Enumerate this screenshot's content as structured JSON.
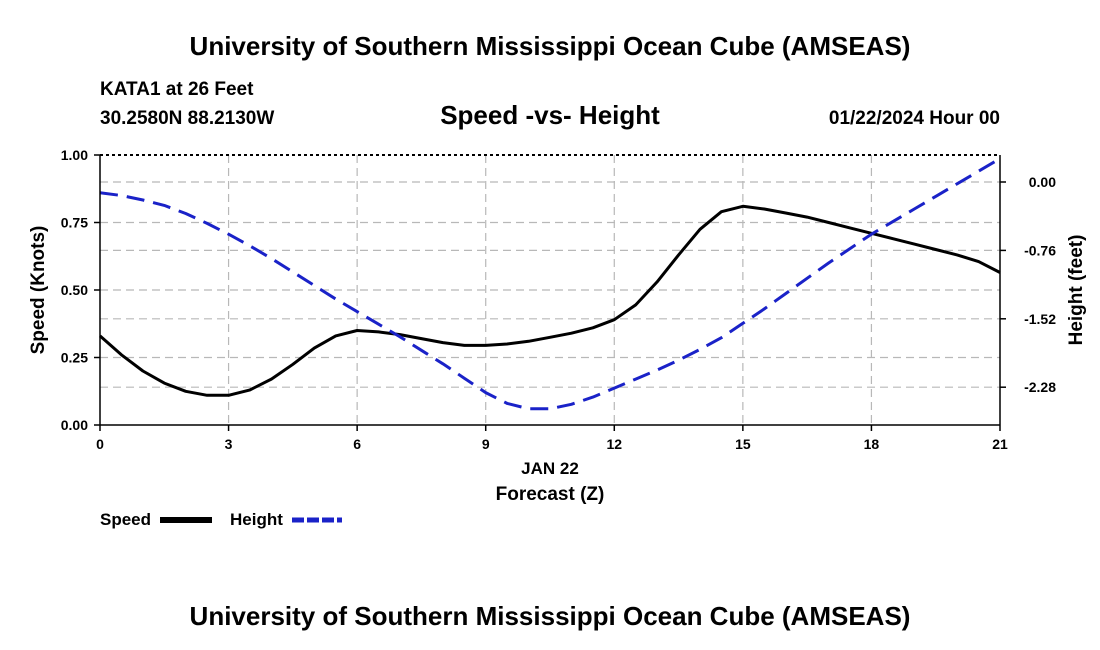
{
  "header": {
    "title": "University of Southern Mississippi Ocean Cube (AMSEAS)",
    "station_line": "KATA1 at 26 Feet",
    "coords_line": "30.2580N  88.2130W",
    "date_line": "01/22/2024 Hour 00"
  },
  "footer": {
    "title": "University of Southern Mississippi Ocean Cube (AMSEAS)"
  },
  "colors": {
    "speed": "#000000",
    "height": "#1a22c8",
    "grid": "#b8b8b8"
  },
  "chart_data": {
    "type": "line",
    "title": "Speed -vs- Height",
    "xlabel": "Forecast (Z)",
    "xdate_label": "JAN 22",
    "ylabel": "Speed (Knots)",
    "y2label": "Height (feet)",
    "xlim": [
      0,
      21
    ],
    "ylim": [
      0,
      1
    ],
    "y2lim": [
      -2.7,
      0.3
    ],
    "x_ticks": [
      "0",
      "3",
      "6",
      "9",
      "12",
      "15",
      "18",
      "21"
    ],
    "x_tick_values": [
      0,
      3,
      6,
      9,
      12,
      15,
      18,
      21
    ],
    "y_ticks": [
      "0.00",
      "0.25",
      "0.50",
      "0.75",
      "1.00"
    ],
    "y_tick_values": [
      0,
      0.25,
      0.5,
      0.75,
      1.0
    ],
    "y2_ticks": [
      "-2.28",
      "-1.52",
      "-0.76",
      "0.00"
    ],
    "y2_tick_values": [
      -2.28,
      -1.52,
      -0.76,
      0.0
    ],
    "legend": [
      {
        "label": "Speed",
        "style": "solid"
      },
      {
        "label": "Height",
        "style": "dashed"
      }
    ],
    "series": [
      {
        "name": "Speed",
        "axis": "left",
        "x": [
          0,
          0.5,
          1,
          1.5,
          2,
          2.5,
          3,
          3.5,
          4,
          4.5,
          5,
          5.5,
          6,
          6.5,
          7,
          7.5,
          8,
          8.5,
          9,
          9.5,
          10,
          10.5,
          11,
          11.5,
          12,
          12.5,
          13,
          13.5,
          14,
          14.5,
          15,
          15.5,
          16,
          16.5,
          17,
          17.5,
          18,
          18.5,
          19,
          19.5,
          20,
          20.5,
          21
        ],
        "values": [
          0.33,
          0.26,
          0.2,
          0.155,
          0.125,
          0.11,
          0.11,
          0.13,
          0.17,
          0.225,
          0.285,
          0.33,
          0.35,
          0.345,
          0.335,
          0.32,
          0.305,
          0.295,
          0.295,
          0.3,
          0.31,
          0.325,
          0.34,
          0.36,
          0.39,
          0.445,
          0.53,
          0.63,
          0.725,
          0.79,
          0.81,
          0.8,
          0.785,
          0.77,
          0.75,
          0.73,
          0.71,
          0.69,
          0.67,
          0.65,
          0.63,
          0.605,
          0.565
        ]
      },
      {
        "name": "Height",
        "axis": "right",
        "x": [
          0,
          0.5,
          1,
          1.5,
          2,
          2.5,
          3,
          3.5,
          4,
          4.5,
          5,
          5.5,
          6,
          6.5,
          7,
          7.5,
          8,
          8.5,
          9,
          9.5,
          10,
          10.5,
          11,
          11.5,
          12,
          12.5,
          13,
          13.5,
          14,
          14.5,
          15,
          15.5,
          16,
          16.5,
          17,
          17.5,
          18,
          18.5,
          19,
          19.5,
          20,
          20.5,
          21
        ],
        "values": [
          -0.12,
          -0.15,
          -0.2,
          -0.26,
          -0.35,
          -0.46,
          -0.58,
          -0.71,
          -0.85,
          -1.0,
          -1.15,
          -1.3,
          -1.44,
          -1.58,
          -1.72,
          -1.87,
          -2.02,
          -2.18,
          -2.34,
          -2.46,
          -2.52,
          -2.52,
          -2.47,
          -2.39,
          -2.29,
          -2.19,
          -2.09,
          -1.98,
          -1.86,
          -1.73,
          -1.57,
          -1.41,
          -1.24,
          -1.07,
          -0.9,
          -0.74,
          -0.58,
          -0.44,
          -0.3,
          -0.16,
          -0.02,
          0.12,
          0.26
        ]
      }
    ]
  }
}
